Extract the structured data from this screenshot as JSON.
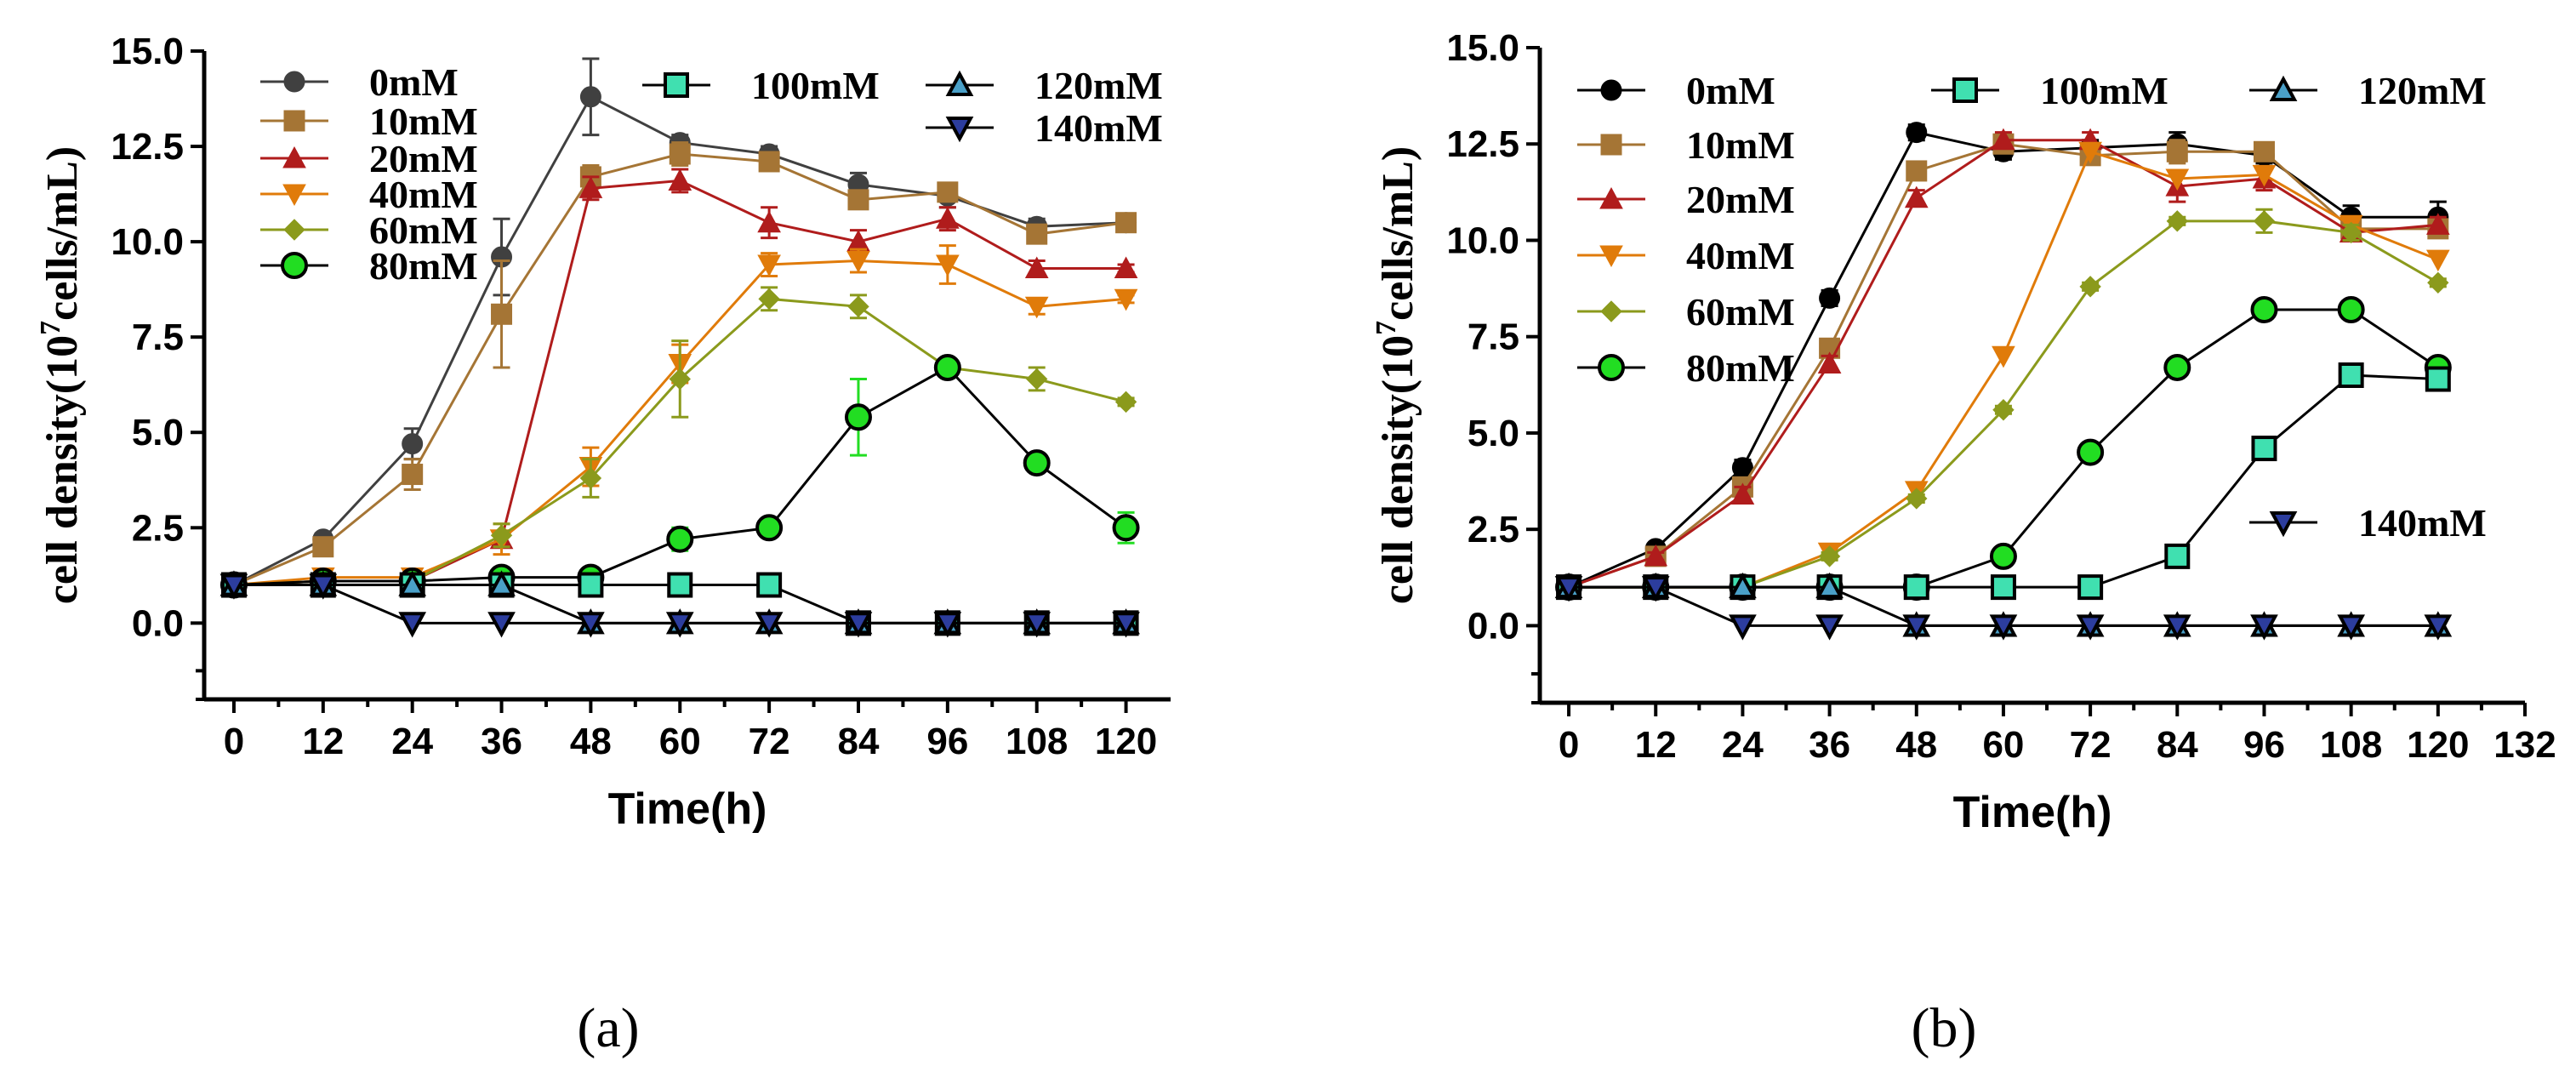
{
  "chart_data": [
    {
      "type": "line",
      "panel_label": "(a)",
      "xlabel": "Time(h)",
      "ylabel_prefix": "cell density(10",
      "ylabel_exp": "7",
      "ylabel_suffix": "cells/mL)",
      "xlim": [
        -4,
        126
      ],
      "ylim": [
        -2,
        15
      ],
      "xticks": [
        0,
        12,
        24,
        36,
        48,
        60,
        72,
        84,
        96,
        108,
        120
      ],
      "yticks": [
        0.0,
        2.5,
        5.0,
        7.5,
        10.0,
        12.5,
        15.0
      ],
      "ytick_labels": [
        "0.0",
        "2.5",
        "5.0",
        "7.5",
        "10.0",
        "12.5",
        "15.0"
      ],
      "x": [
        0,
        12,
        24,
        36,
        48,
        60,
        72,
        84,
        96,
        108,
        120
      ],
      "series": [
        {
          "name": "0mM",
          "color": "#404040",
          "marker": "circle",
          "values": [
            1.0,
            2.2,
            4.7,
            9.6,
            13.8,
            12.6,
            12.3,
            11.5,
            11.2,
            10.4,
            10.5
          ],
          "errors": [
            0.1,
            0.15,
            0.4,
            1.0,
            1.0,
            0.2,
            0.2,
            0.3,
            0.3,
            0.2,
            0.2
          ]
        },
        {
          "name": "10mM",
          "color": "#a57535",
          "marker": "square",
          "values": [
            1.0,
            2.0,
            3.9,
            8.1,
            11.7,
            12.3,
            12.1,
            11.1,
            11.3,
            10.2,
            10.5
          ],
          "errors": [
            0.1,
            0.15,
            0.4,
            1.4,
            0.3,
            0.3,
            0.2,
            0.2,
            0.2,
            0.2,
            0.2
          ]
        },
        {
          "name": "20mM",
          "color": "#b01c1c",
          "marker": "triangle-up",
          "values": [
            1.0,
            1.1,
            1.1,
            2.2,
            11.4,
            11.6,
            10.5,
            10.0,
            10.6,
            9.3,
            9.3
          ],
          "errors": [
            0.1,
            0.1,
            0.1,
            0.2,
            0.3,
            0.3,
            0.4,
            0.3,
            0.3,
            0.2,
            0.1
          ]
        },
        {
          "name": "40mM",
          "color": "#e07b0a",
          "marker": "triangle-down",
          "values": [
            1.0,
            1.2,
            1.2,
            2.2,
            4.1,
            6.8,
            9.4,
            9.5,
            9.4,
            8.3,
            8.5
          ],
          "errors": [
            0.1,
            0.1,
            0.1,
            0.4,
            0.5,
            0.5,
            0.3,
            0.3,
            0.5,
            0.2,
            0.1
          ]
        },
        {
          "name": "60mM",
          "color": "#8b9a1c",
          "marker": "diamond",
          "values": [
            1.0,
            1.1,
            1.1,
            2.3,
            3.8,
            6.4,
            8.5,
            8.3,
            6.7,
            6.4,
            5.8
          ],
          "errors": [
            0.1,
            0.1,
            0.1,
            0.3,
            0.5,
            1.0,
            0.3,
            0.3,
            0.2,
            0.3,
            0.1
          ]
        },
        {
          "name": "80mM",
          "color": "#22dd22",
          "marker": "circle-outlined",
          "values": [
            1.0,
            1.1,
            1.1,
            1.2,
            1.2,
            2.2,
            2.5,
            5.4,
            6.7,
            4.2,
            2.5
          ],
          "errors": [
            0.1,
            0.1,
            0.1,
            0.1,
            0.1,
            0.3,
            0.2,
            1.0,
            0.2,
            0.2,
            0.4
          ]
        },
        {
          "name": "100mM",
          "color": "#40e0b0",
          "marker": "square-outlined",
          "values": [
            1.0,
            1.0,
            1.0,
            1.0,
            1.0,
            1.0,
            1.0,
            0.0,
            0.0,
            0.0,
            0.0
          ],
          "errors": []
        },
        {
          "name": "120mM",
          "color": "#4aa0c8",
          "marker": "triangle-up-outlined",
          "values": [
            1.0,
            1.0,
            1.0,
            1.0,
            0.0,
            0.0,
            0.0,
            0.0,
            0.0,
            0.0,
            0.0
          ],
          "errors": []
        },
        {
          "name": "140mM",
          "color": "#2c3d9e",
          "marker": "triangle-down-outlined",
          "values": [
            1.0,
            1.0,
            0.0,
            0.0,
            0.0,
            0.0,
            0.0,
            0.0,
            0.0,
            0.0,
            0.0
          ],
          "errors": []
        }
      ]
    },
    {
      "type": "line",
      "panel_label": "(b)",
      "xlabel": "Time(h)",
      "ylabel_prefix": "cell density(10",
      "ylabel_exp": "7",
      "ylabel_suffix": "cells/mL)",
      "xlim": [
        -4,
        132
      ],
      "ylim": [
        -2,
        15
      ],
      "xticks": [
        0,
        12,
        24,
        36,
        48,
        60,
        72,
        84,
        96,
        108,
        120,
        132
      ],
      "yticks": [
        0.0,
        2.5,
        5.0,
        7.5,
        10.0,
        12.5,
        15.0
      ],
      "ytick_labels": [
        "0.0",
        "2.5",
        "5.0",
        "7.5",
        "10.0",
        "12.5",
        "15.0"
      ],
      "x": [
        0,
        12,
        24,
        36,
        48,
        60,
        72,
        84,
        96,
        108,
        120
      ],
      "series": [
        {
          "name": "0mM",
          "color": "#000000",
          "marker": "circle",
          "values": [
            1.0,
            2.0,
            4.1,
            8.5,
            12.8,
            12.3,
            12.4,
            12.5,
            12.2,
            10.6,
            10.6
          ],
          "errors": [
            0.1,
            0.1,
            0.2,
            0.2,
            0.2,
            0.2,
            0.2,
            0.3,
            0.2,
            0.3,
            0.4
          ]
        },
        {
          "name": "10mM",
          "color": "#a57535",
          "marker": "square",
          "values": [
            1.0,
            1.8,
            3.6,
            7.2,
            11.8,
            12.5,
            12.2,
            12.3,
            12.3,
            10.3,
            10.3
          ],
          "errors": [
            0.1,
            0.1,
            0.2,
            0.2,
            0.2,
            0.2,
            0.2,
            0.3,
            0.2,
            0.2,
            0.2
          ]
        },
        {
          "name": "20mM",
          "color": "#b01c1c",
          "marker": "triangle-up",
          "values": [
            1.0,
            1.8,
            3.4,
            6.8,
            11.1,
            12.6,
            12.6,
            11.4,
            11.6,
            10.2,
            10.4
          ],
          "errors": [
            0.1,
            0.1,
            0.2,
            0.2,
            0.2,
            0.2,
            0.2,
            0.4,
            0.3,
            0.2,
            0.2
          ]
        },
        {
          "name": "40mM",
          "color": "#e07b0a",
          "marker": "triangle-down",
          "values": [
            1.0,
            1.0,
            1.0,
            1.9,
            3.5,
            7.0,
            12.3,
            11.6,
            11.7,
            10.4,
            9.5
          ],
          "errors": []
        },
        {
          "name": "60mM",
          "color": "#8b9a1c",
          "marker": "diamond",
          "values": [
            1.0,
            1.0,
            1.0,
            1.8,
            3.3,
            5.6,
            8.8,
            10.5,
            10.5,
            10.2,
            8.9
          ],
          "errors": [
            0.1,
            0.1,
            0.1,
            0.1,
            0.1,
            0.1,
            0.1,
            0.1,
            0.3,
            0.2,
            0.1
          ]
        },
        {
          "name": "80mM",
          "color": "#22dd22",
          "marker": "circle-outlined",
          "values": [
            1.0,
            1.0,
            1.0,
            1.0,
            1.0,
            1.8,
            4.5,
            6.7,
            8.2,
            8.2,
            6.7
          ],
          "errors": []
        },
        {
          "name": "100mM",
          "color": "#40e0b0",
          "marker": "square-outlined",
          "values": [
            1.0,
            1.0,
            1.0,
            1.0,
            1.0,
            1.0,
            1.0,
            1.8,
            4.6,
            6.5,
            6.4
          ],
          "errors": []
        },
        {
          "name": "120mM",
          "color": "#4aa0c8",
          "marker": "triangle-up-outlined",
          "values": [
            1.0,
            1.0,
            1.0,
            1.0,
            0.0,
            0.0,
            0.0,
            0.0,
            0.0,
            0.0,
            0.0
          ],
          "errors": []
        },
        {
          "name": "140mM",
          "color": "#2c3d9e",
          "marker": "triangle-down-outlined",
          "values": [
            1.0,
            1.0,
            0.0,
            0.0,
            0.0,
            0.0,
            0.0,
            0.0,
            0.0,
            0.0,
            0.0
          ],
          "errors": []
        }
      ]
    }
  ]
}
